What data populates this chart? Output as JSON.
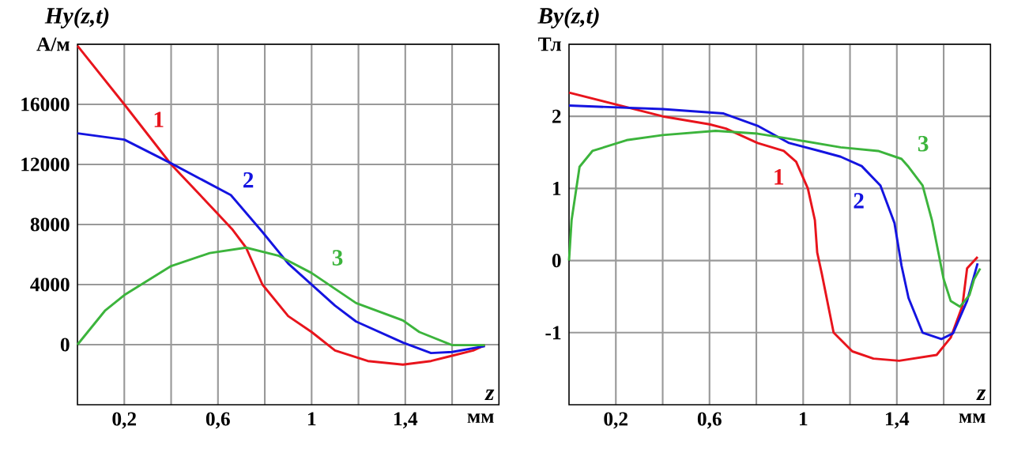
{
  "chart_data": [
    {
      "type": "line",
      "ylabel": "Hy(z,t)",
      "xlabel": "z",
      "annotations": [
        "мм"
      ],
      "grid": true,
      "legend": false,
      "xlim": [
        0,
        1.8
      ],
      "ylim": [
        -4000,
        20000
      ],
      "xticks": [
        {
          "value": 0.2,
          "label": "0,2"
        },
        {
          "value": 0.4,
          "label": null
        },
        {
          "value": 0.6,
          "label": "0,6"
        },
        {
          "value": 0.8,
          "label": null
        },
        {
          "value": 1,
          "label": "1"
        },
        {
          "value": 1.2,
          "label": null
        },
        {
          "value": 1.4,
          "label": "1,4"
        },
        {
          "value": 1.6,
          "label": null
        }
      ],
      "yticks": [
        0,
        4000,
        8000,
        12000,
        16000,
        {
          "value": 20000,
          "label": "А/м"
        }
      ],
      "series": [
        {
          "name": "1",
          "color": "#e8141c",
          "x": [
            0,
            0.2,
            0.4,
            0.6,
            0.66,
            0.72,
            0.79,
            0.9,
            1,
            1.1,
            1.24,
            1.39,
            1.51,
            1.6,
            1.69,
            1.74
          ],
          "values": [
            19900,
            16000,
            12000,
            8700,
            7700,
            6460,
            4000,
            1900,
            840,
            -390,
            -1090,
            -1330,
            -1090,
            -740,
            -390,
            -35
          ]
        },
        {
          "name": "2",
          "color": "#1414e0",
          "x": [
            0,
            0.2,
            0.4,
            0.655,
            0.79,
            0.9,
            1,
            1.1,
            1.19,
            1.39,
            1.51,
            1.6,
            1.74
          ],
          "values": [
            14070,
            13650,
            12070,
            9960,
            7500,
            5400,
            4000,
            2600,
            1540,
            140,
            -560,
            -490,
            -100
          ]
        },
        {
          "name": "3",
          "color": "#3cb43c",
          "x": [
            0,
            0.117,
            0.2,
            0.4,
            0.565,
            0.72,
            0.857,
            1,
            1.19,
            1.39,
            1.46,
            1.6,
            1.74
          ],
          "values": [
            0,
            2250,
            3300,
            5230,
            6100,
            6460,
            5930,
            4770,
            2770,
            1610,
            840,
            -35,
            -35
          ]
        }
      ]
    },
    {
      "type": "line",
      "ylabel": "By(z,t)",
      "xlabel": "z",
      "annotations": [
        "мм"
      ],
      "grid": true,
      "legend": false,
      "xlim": [
        0,
        1.8
      ],
      "ylim": [
        -2,
        3
      ],
      "xticks": [
        {
          "value": 0.2,
          "label": "0,2"
        },
        {
          "value": 0.4,
          "label": null
        },
        {
          "value": 0.6,
          "label": "0,6"
        },
        {
          "value": 0.8,
          "label": null
        },
        {
          "value": 1,
          "label": "1"
        },
        {
          "value": 1.2,
          "label": null
        },
        {
          "value": 1.4,
          "label": "1,4"
        },
        {
          "value": 1.6,
          "label": null
        }
      ],
      "yticks": [
        -1,
        0,
        1,
        2,
        {
          "value": 3,
          "label": "Тл"
        }
      ],
      "series": [
        {
          "name": "1",
          "color": "#e8141c",
          "x": [
            0,
            0.4,
            0.6,
            0.67,
            0.805,
            0.917,
            0.97,
            1.02,
            1.05,
            1.06,
            1.08,
            1.13,
            1.21,
            1.3,
            1.41,
            1.57,
            1.63,
            1.68,
            1.7,
            1.745
          ],
          "values": [
            2.33,
            2.0,
            1.89,
            1.83,
            1.63,
            1.52,
            1.37,
            1.0,
            0.56,
            0.11,
            -0.19,
            -1.0,
            -1.26,
            -1.36,
            -1.39,
            -1.31,
            -1.07,
            -0.63,
            -0.11,
            0.05
          ]
        },
        {
          "name": "2",
          "color": "#1414e0",
          "x": [
            0,
            0.4,
            0.66,
            0.805,
            0.94,
            1.07,
            1.16,
            1.25,
            1.33,
            1.39,
            1.42,
            1.45,
            1.51,
            1.59,
            1.64,
            1.7,
            1.745
          ],
          "values": [
            2.15,
            2.1,
            2.04,
            1.87,
            1.63,
            1.52,
            1.44,
            1.31,
            1.04,
            0.52,
            -0.07,
            -0.52,
            -1.0,
            -1.09,
            -1.01,
            -0.56,
            -0.04
          ]
        },
        {
          "name": "3",
          "color": "#3cb43c",
          "x": [
            0,
            0.011,
            0.045,
            0.1,
            0.246,
            0.4,
            0.626,
            0.805,
            0.96,
            1.16,
            1.32,
            1.42,
            1.45,
            1.51,
            1.55,
            1.58,
            1.6,
            1.63,
            1.67,
            1.71,
            1.73,
            1.756
          ],
          "values": [
            0,
            0.56,
            1.3,
            1.52,
            1.67,
            1.74,
            1.8,
            1.76,
            1.68,
            1.57,
            1.52,
            1.41,
            1.3,
            1.04,
            0.56,
            0.07,
            -0.26,
            -0.56,
            -0.64,
            -0.48,
            -0.26,
            -0.11
          ]
        }
      ]
    }
  ]
}
